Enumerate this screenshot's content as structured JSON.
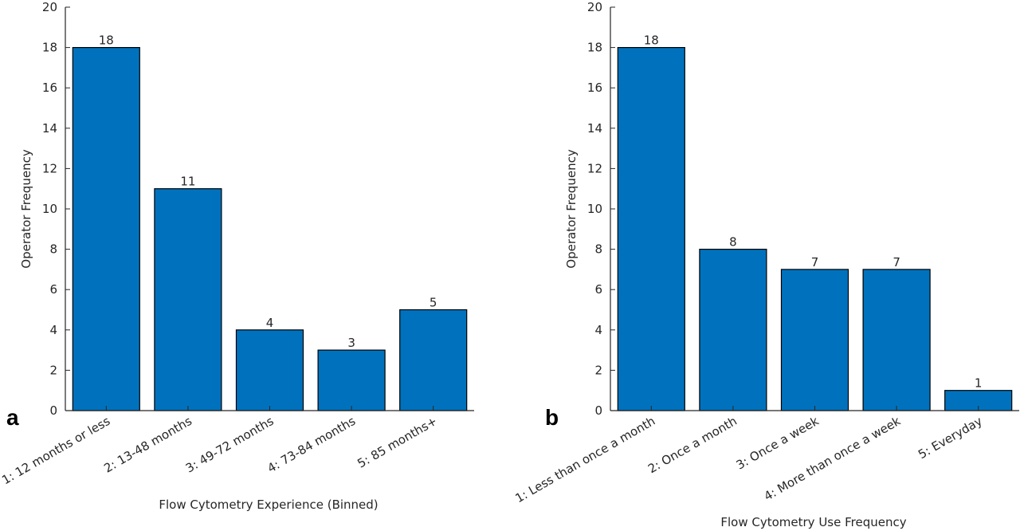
{
  "colors": {
    "bar": "#0072BD",
    "bar_edge": "#000000",
    "axis": "#262626"
  },
  "chart_data": [
    {
      "type": "bar",
      "panel_label": "a",
      "xlabel": "Flow Cytometry Experience (Binned)",
      "ylabel": "Operator Frequency",
      "ylim": [
        0,
        20
      ],
      "yticks": [
        0,
        2,
        4,
        6,
        8,
        10,
        12,
        14,
        16,
        18,
        20
      ],
      "categories": [
        "1: 12 months or less",
        "2: 13-48 months",
        "3: 49-72 months",
        "4: 73-84 months",
        "5: 85 months+"
      ],
      "values": [
        18,
        11,
        4,
        3,
        5
      ],
      "grid": false
    },
    {
      "type": "bar",
      "panel_label": "b",
      "xlabel": "Flow Cytometry Use Frequency",
      "ylabel": "Operator Frequency",
      "ylim": [
        0,
        20
      ],
      "yticks": [
        0,
        2,
        4,
        6,
        8,
        10,
        12,
        14,
        16,
        18,
        20
      ],
      "categories": [
        "1: Less than once a month",
        "2: Once a month",
        "3: Once a week",
        "4: More than once a week",
        "5: Everyday"
      ],
      "values": [
        18,
        8,
        7,
        7,
        1
      ],
      "grid": false
    }
  ]
}
